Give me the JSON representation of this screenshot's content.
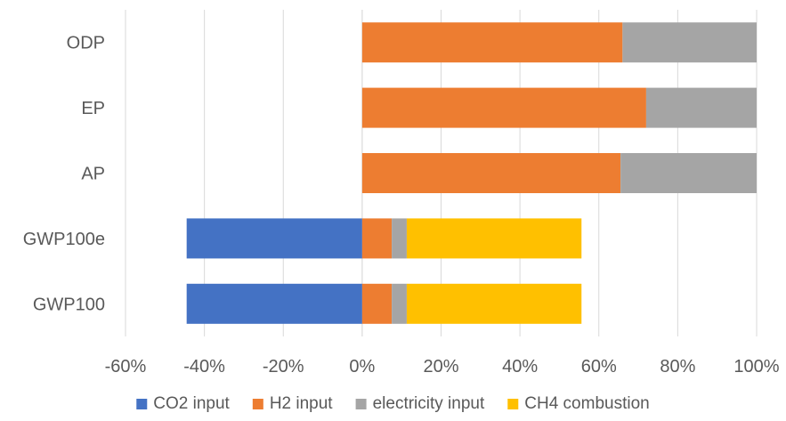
{
  "chart_data": {
    "type": "bar",
    "orientation": "horizontal",
    "stacked": true,
    "categories": [
      "ODP",
      "EP",
      "AP",
      "GWP100e",
      "GWP100"
    ],
    "series": [
      {
        "name": "CO2 input",
        "color": "#4472C4",
        "values": [
          0,
          0,
          0,
          -0.445,
          -0.445
        ]
      },
      {
        "name": "H2 input",
        "color": "#ED7D31",
        "values": [
          0.66,
          0.72,
          0.655,
          0.075,
          0.075
        ]
      },
      {
        "name": "electricity input",
        "color": "#A5A5A5",
        "values": [
          0.34,
          0.28,
          0.345,
          0.038,
          0.038
        ]
      },
      {
        "name": "CH4 combustion",
        "color": "#FFC000",
        "values": [
          0,
          0,
          0,
          0.443,
          0.443
        ]
      }
    ],
    "xlim": [
      -0.6,
      1.0
    ],
    "xticks": [
      -0.6,
      -0.4,
      -0.2,
      0,
      0.2,
      0.4,
      0.6,
      0.8,
      1.0
    ],
    "xtick_labels": [
      "-60%",
      "-40%",
      "-20%",
      "0%",
      "20%",
      "40%",
      "60%",
      "80%",
      "100%"
    ],
    "grid": "vertical",
    "legend_position": "bottom"
  }
}
